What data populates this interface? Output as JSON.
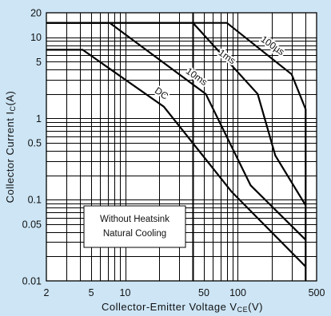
{
  "colors": {
    "background": "#cde5f5",
    "plot": "#ffffff",
    "line": "#000000"
  },
  "chart_data": {
    "type": "line",
    "x_scale": "log",
    "y_scale": "log",
    "xlabel": {
      "text": "Collector-Emitter Voltage V",
      "sub": "CE",
      "unit": "(V)"
    },
    "ylabel": {
      "text": "Collector Current I",
      "sub": "C",
      "unit": "(A)"
    },
    "xlim": [
      2,
      500
    ],
    "ylim": [
      0.01,
      20
    ],
    "x_tick_values": [
      2,
      5,
      10,
      50,
      100,
      500
    ],
    "x_tick_labels": [
      "2",
      "5",
      "10",
      "50",
      "100",
      "500"
    ],
    "y_tick_values": [
      20,
      10,
      5,
      1,
      0.5,
      0.1,
      0.05,
      0.01
    ],
    "y_tick_labels": [
      "20",
      "10",
      "5",
      "1",
      "0.5",
      "0.1",
      "0.05",
      "0.01"
    ],
    "grid": true,
    "series": [
      {
        "name": "100µs",
        "points": [
          [
            2,
            15
          ],
          [
            80,
            15
          ],
          [
            300,
            3.5
          ],
          [
            400,
            1.3
          ],
          [
            400,
            0.01
          ]
        ]
      },
      {
        "name": "1ms",
        "points": [
          [
            2,
            15
          ],
          [
            40,
            15
          ],
          [
            150,
            2
          ],
          [
            215,
            0.35
          ],
          [
            400,
            0.085
          ]
        ]
      },
      {
        "name": "10ms",
        "points": [
          [
            2,
            15
          ],
          [
            7.3,
            15
          ],
          [
            52,
            2
          ],
          [
            130,
            0.15
          ],
          [
            400,
            0.032
          ]
        ]
      },
      {
        "name": "DC",
        "points": [
          [
            2,
            7
          ],
          [
            4.2,
            7
          ],
          [
            22,
            1.4
          ],
          [
            88,
            0.125
          ],
          [
            400,
            0.015
          ]
        ]
      }
    ],
    "annotation": {
      "lines": [
        "Without Heatsink",
        "Natural Cooling"
      ]
    }
  }
}
